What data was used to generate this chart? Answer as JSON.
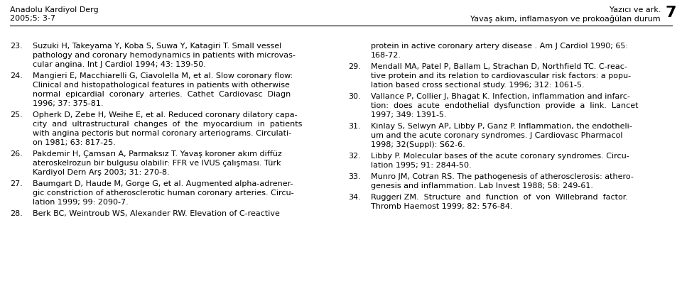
{
  "header_left_line1": "Anadolu Kardiyol Derg",
  "header_left_line2": "2005;5: 3-7",
  "header_right_line1": "Yazıcı ve ark.",
  "header_right_line2": "Yavaş akım, inflamasyon ve prokoağülan durum",
  "header_page": "7",
  "background_color": "#ffffff",
  "text_color": "#000000",
  "left_references": [
    {
      "num": "23.",
      "lines": [
        "Suzuki H, Takeyama Y, Koba S, Suwa Y, Katagiri T. Small vessel",
        "pathology and coronary hemodynamics in patients with microvas-",
        "cular angina. Int J Cardiol 1994; 43: 139-50."
      ]
    },
    {
      "num": "24.",
      "lines": [
        "Mangieri E, Macchiarelli G, Ciavolella M, et al. Slow coronary flow:",
        "Clinical and histopathological features in patients with otherwise",
        "normal  epicardial  coronary  arteries.  Cathet  Cardiovasc  Diagn",
        "1996; 37: 375-81."
      ]
    },
    {
      "num": "25.",
      "lines": [
        "Opherk D, Zebe H, Weihe E, et al. Reduced coronary dilatory capa-",
        "city  and  ultrastructural  changes  of  the  myocardium  in  patients",
        "with angina pectoris but normal coronary arteriograms. Circulati-",
        "on 1981; 63: 817-25."
      ]
    },
    {
      "num": "26.",
      "lines": [
        "Pakdemir H, Çamsarı A, Parmaksız T. Yavaş koroner akım diffüz",
        "ateroskelrozun bir bulgusu olabilir: FFR ve IVUS çalışması. Türk",
        "Kardiyol Dern Arş 2003; 31: 270-8."
      ]
    },
    {
      "num": "27.",
      "lines": [
        "Baumgart D, Haude M, Gorge G, et al. Augmented alpha-adrener-",
        "gic constriction of atherosclerotic human coronary arteries. Circu-",
        "lation 1999; 99: 2090-7."
      ]
    },
    {
      "num": "28.",
      "lines": [
        "Berk BC, Weintroub WS, Alexander RW. Elevation of C-reactive"
      ]
    }
  ],
  "right_continuation_lines": [
    "protein in active coronary artery disease . Am J Cardiol 1990; 65:",
    "168-72."
  ],
  "right_references": [
    {
      "num": "29.",
      "lines": [
        "Mendall MA, Patel P, Ballam L, Strachan D, Northfield TC. C-reac-",
        "tive protein and its relation to cardiovascular risk factors: a popu-",
        "lation based cross sectional study. 1996; 312: 1061-5."
      ]
    },
    {
      "num": "30.",
      "lines": [
        "Vallance P, Collier J, Bhagat K. Infection, inflammation and infarc-",
        "tion:  does  acute  endothelial  dysfunction  provide  a  link.  Lancet",
        "1997; 349: 1391-5."
      ]
    },
    {
      "num": "31.",
      "lines": [
        "Kinlay S, Selwyn AP, Libby P, Ganz P. Inflammation, the endotheli-",
        "um and the acute coronary syndromes. J Cardiovasc Pharmacol",
        "1998; 32(Suppl): S62-6."
      ]
    },
    {
      "num": "32.",
      "lines": [
        "Libby P. Molecular bases of the acute coronary syndromes. Circu-",
        "lation 1995; 91: 2844-50."
      ]
    },
    {
      "num": "33.",
      "lines": [
        "Munro JM, Cotran RS. The pathogenesis of atherosclerosis: athero-",
        "genesis and inflammation. Lab Invest 1988; 58: 249-61."
      ]
    },
    {
      "num": "34.",
      "lines": [
        "Ruggeri ZM.  Structure  and  function  of  von  Willebrand  factor.",
        "Thromb Haemost 1999; 82: 576-84."
      ]
    }
  ]
}
